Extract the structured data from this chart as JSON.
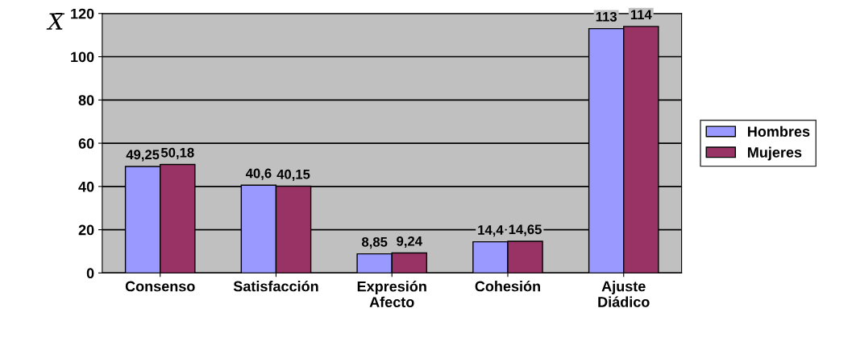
{
  "chart_data": {
    "type": "bar",
    "ylabel": "X̄",
    "categories": [
      "Consenso",
      "Satisfacción",
      "Expresión\nAfecto",
      "Cohesión",
      "Ajuste\nDiádico"
    ],
    "series": [
      {
        "name": "Hombres",
        "color": "#9999ff",
        "values": [
          49.25,
          40.6,
          8.85,
          14.4,
          113
        ],
        "value_labels": [
          "49,25",
          "40,6",
          "8,85",
          "14,4",
          "113"
        ]
      },
      {
        "name": "Mujeres",
        "color": "#993366",
        "values": [
          50.18,
          40.15,
          9.24,
          14.65,
          114
        ],
        "value_labels": [
          "50,18",
          "40,15",
          "9,24",
          "14,65",
          "114"
        ]
      }
    ],
    "ylim": [
      0,
      120
    ],
    "yticks": [
      0,
      20,
      40,
      60,
      80,
      100,
      120
    ],
    "grid": "y",
    "legend": "right"
  }
}
